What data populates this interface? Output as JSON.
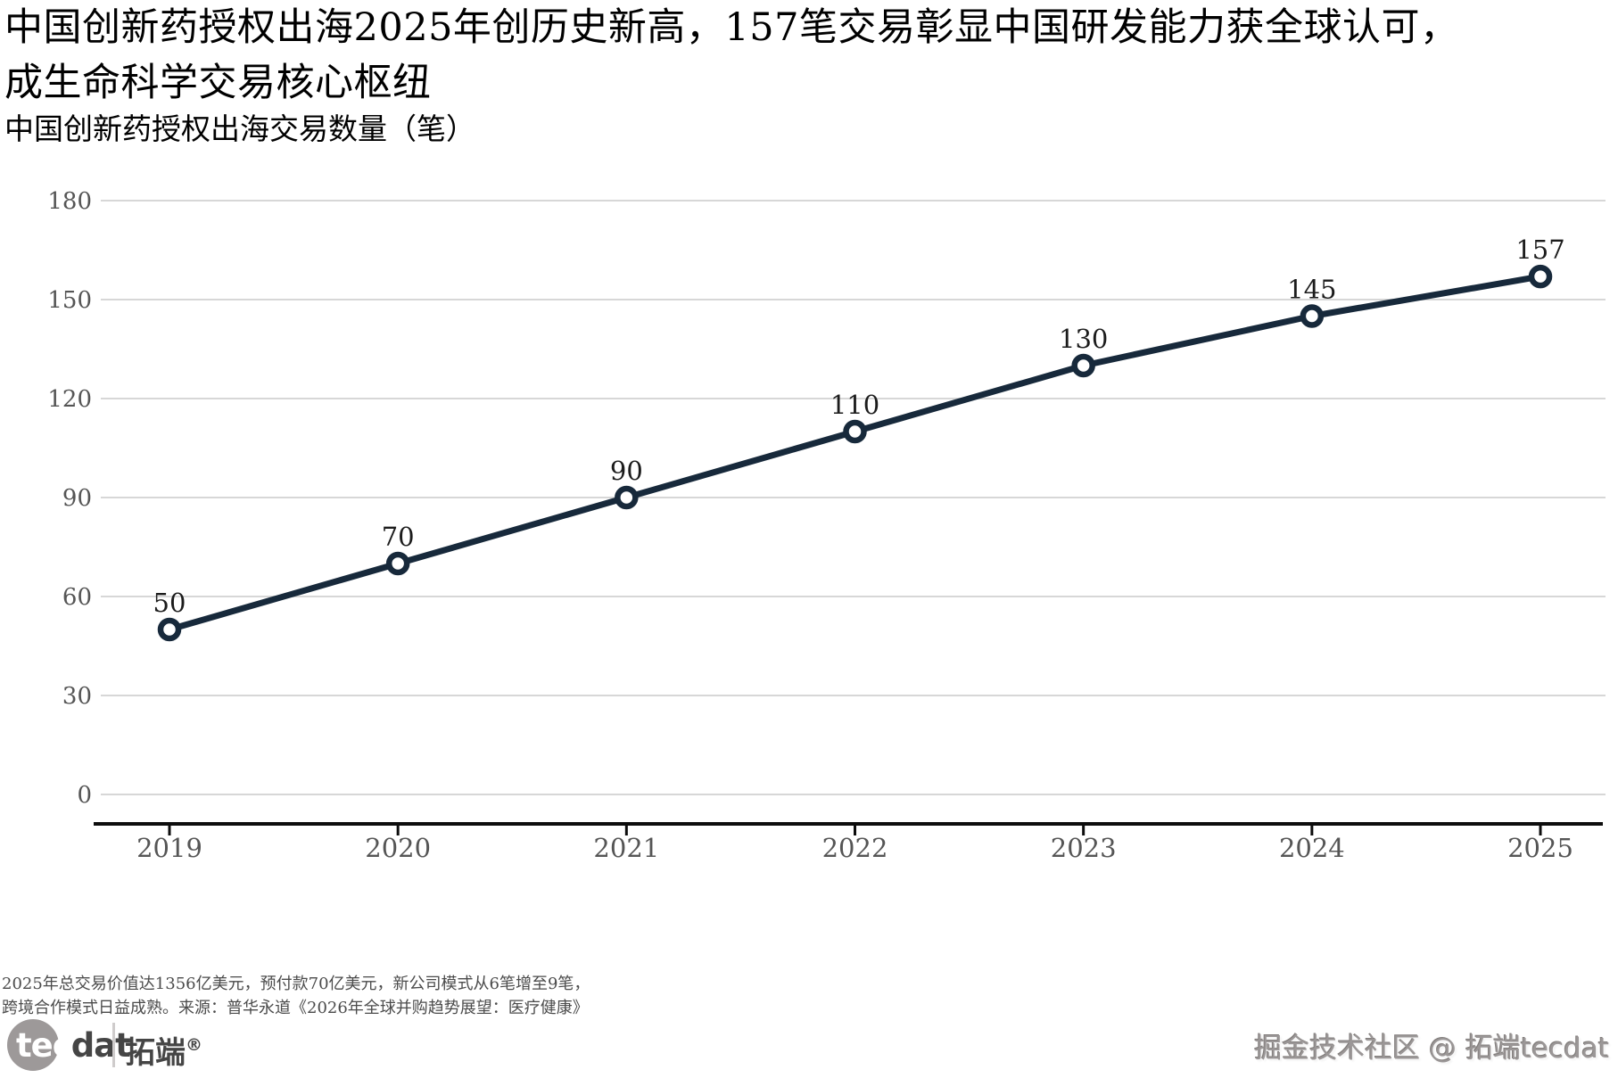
{
  "header": {
    "title_line1": "中国创新药授权出海2025年创历史新高，157笔交易彰显中国研发能力获全球认可，",
    "title_line2": "成生命科学交易核心枢纽",
    "subtitle": "中国创新药授权出海交易数量（笔）"
  },
  "chart_data": {
    "type": "line",
    "title": "中国创新药授权出海交易数量（笔）",
    "categories": [
      "2019",
      "2020",
      "2021",
      "2022",
      "2023",
      "2024",
      "2025"
    ],
    "values": [
      50,
      70,
      90,
      110,
      130,
      145,
      157
    ],
    "xlabel": "",
    "ylabel": "",
    "ylim": [
      0,
      180
    ],
    "ytick_step": 30,
    "grid": "horizontal-only",
    "legend": "none",
    "point_labels_shown": true,
    "colors": {
      "line": "#17293b",
      "marker_fill": "#ffffff",
      "grid": "#d7d7d7",
      "axis": "#0d0d0d",
      "tick_label": "#555555",
      "value_label": "#1c1c1c"
    }
  },
  "footer": {
    "note_line1": "2025年总交易价值达1356亿美元，预付款70亿美元，新公司模式从6笔增至9笔，",
    "note_line2": "跨境合作模式日益成熟。来源：普华永道《2026年全球并购趋势展望：医疗健康》"
  },
  "branding": {
    "logo_tec": "tec",
    "logo_dat": "dat",
    "logo_cn": "拓端",
    "logo_reg": "®",
    "watermark": "掘金技术社区 @ 拓端tecdat"
  }
}
